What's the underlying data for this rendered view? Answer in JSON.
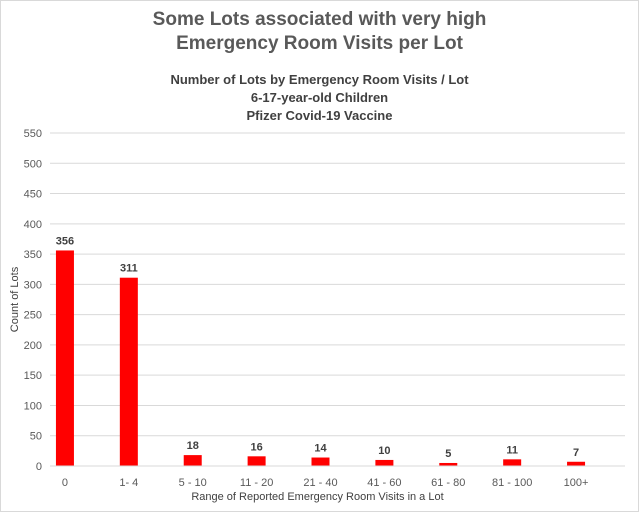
{
  "chart_data": {
    "type": "bar",
    "title_lines": [
      "Some Lots associated with very high",
      "Emergency Room Visits per Lot"
    ],
    "subtitle_lines": [
      "Number of Lots by Emergency Room Visits / Lot",
      "6-17-year-old Children",
      "Pfizer Covid-19 Vaccine"
    ],
    "categories": [
      "0",
      "1- 4",
      "5 - 10",
      "11 - 20",
      "21 - 40",
      "41 - 60",
      "61 - 80",
      "81 - 100",
      "100+"
    ],
    "values": [
      356,
      311,
      18,
      16,
      14,
      10,
      5,
      11,
      7
    ],
    "xlabel": "Range of Reported Emergency Room Visits in a Lot",
    "ylabel": "Count of Lots",
    "ylim": [
      0,
      550
    ],
    "yticks": [
      0,
      50,
      100,
      150,
      200,
      250,
      300,
      350,
      400,
      450,
      500,
      550
    ],
    "grid": true,
    "legend": "none",
    "bar_color": "#ff0000"
  }
}
